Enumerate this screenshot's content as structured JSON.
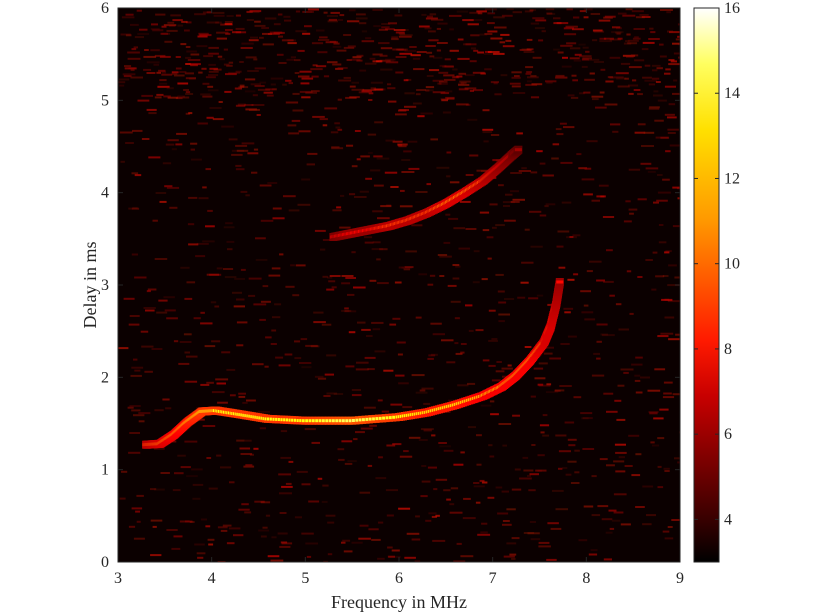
{
  "chart_data": {
    "type": "heatmap",
    "title": "",
    "xlabel": "Frequency in MHz",
    "ylabel": "Delay in ms",
    "xlim": [
      3,
      9
    ],
    "ylim": [
      0,
      6
    ],
    "x_ticks": [
      "3",
      "4",
      "5",
      "6",
      "7",
      "8",
      "9"
    ],
    "y_ticks": [
      "0",
      "1",
      "2",
      "3",
      "4",
      "5",
      "6"
    ],
    "grid": false,
    "colormap": "hot",
    "background_color": "#0b0000",
    "colorbar": {
      "position": "right",
      "range": [
        3,
        16
      ],
      "ticks": [
        "4",
        "6",
        "8",
        "10",
        "12",
        "14",
        "16"
      ]
    },
    "traces": [
      {
        "points": [
          [
            3.3,
            1.27
          ],
          [
            3.45,
            1.28
          ],
          [
            3.6,
            1.38
          ],
          [
            3.75,
            1.52
          ],
          [
            3.9,
            1.63
          ],
          [
            4.05,
            1.64
          ],
          [
            4.3,
            1.6
          ],
          [
            4.6,
            1.55
          ],
          [
            5.0,
            1.53
          ],
          [
            5.5,
            1.53
          ],
          [
            6.0,
            1.57
          ],
          [
            6.3,
            1.62
          ],
          [
            6.6,
            1.7
          ],
          [
            6.9,
            1.8
          ],
          [
            7.1,
            1.9
          ],
          [
            7.25,
            2.02
          ],
          [
            7.4,
            2.18
          ],
          [
            7.55,
            2.38
          ],
          [
            7.62,
            2.55
          ],
          [
            7.68,
            2.8
          ],
          [
            7.72,
            3.05
          ]
        ],
        "intensity": [
          9,
          10,
          11,
          12,
          13,
          13,
          13,
          13,
          13,
          14,
          13,
          12,
          12,
          11,
          11,
          11,
          11,
          10,
          10,
          9,
          8
        ]
      },
      {
        "points": [
          [
            5.3,
            3.52
          ],
          [
            5.5,
            3.56
          ],
          [
            5.7,
            3.6
          ],
          [
            5.9,
            3.64
          ],
          [
            6.1,
            3.7
          ],
          [
            6.3,
            3.78
          ],
          [
            6.5,
            3.88
          ],
          [
            6.7,
            4.0
          ],
          [
            6.9,
            4.13
          ],
          [
            7.05,
            4.26
          ],
          [
            7.2,
            4.4
          ],
          [
            7.28,
            4.47
          ]
        ],
        "intensity": [
          7,
          8,
          8,
          9,
          9,
          9,
          10,
          10,
          9,
          8,
          7,
          6
        ]
      }
    ]
  }
}
